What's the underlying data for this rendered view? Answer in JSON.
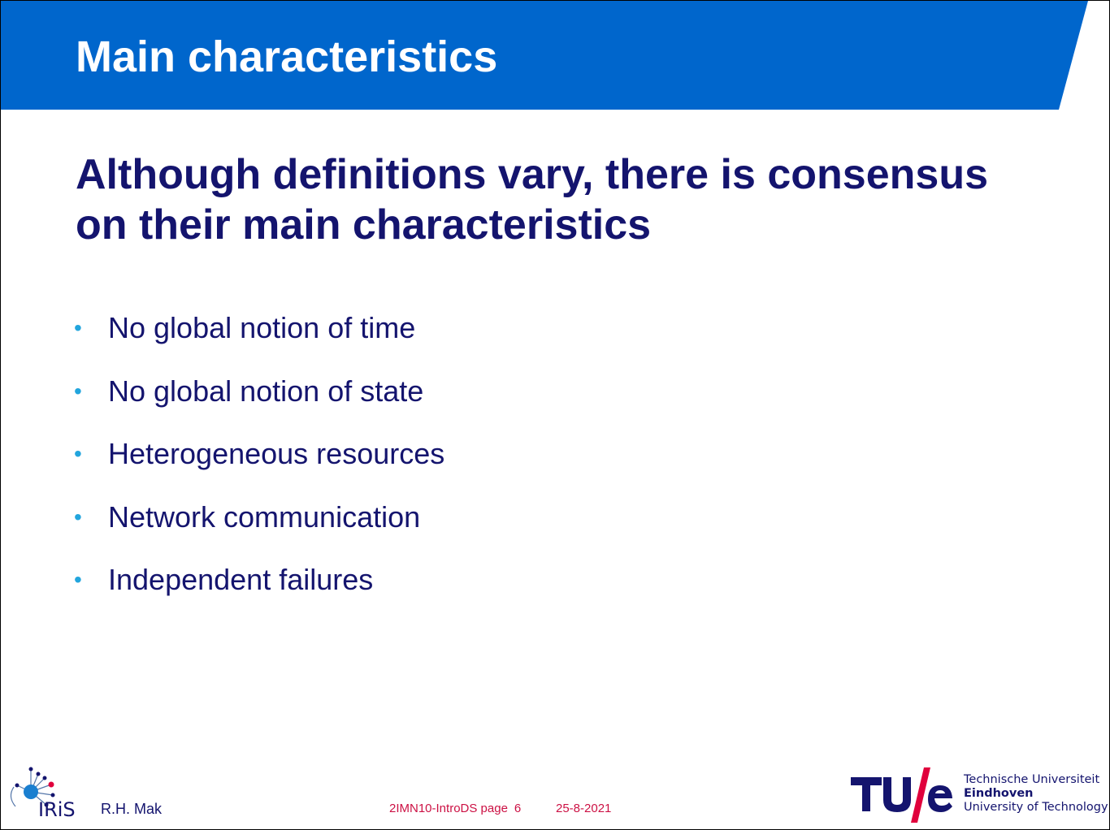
{
  "slide": {
    "title": "Main characteristics",
    "subtitle": "Although definitions vary, there is consensus on their main characteristics",
    "bullet_symbol": "•",
    "bullets": [
      "No global notion of time",
      "No global notion of state",
      "Heterogeneous resources",
      "Network communication",
      "Independent failures"
    ]
  },
  "footer": {
    "iris_logo_text": "IRiS",
    "author": "R.H. Mak",
    "course_page": "2IMN10-IntroDS page",
    "page_number": "6",
    "date": "25-8-2021",
    "tue_logo_text": "TU/e",
    "university_line1": "Technische Universiteit",
    "university_line2": "Eindhoven",
    "university_line3": "University of Technology"
  },
  "colors": {
    "header_blue": "#0066cc",
    "title_text": "#ffffff",
    "body_text": "#14146e",
    "bullet": "#22a5dd",
    "footer_red": "#cc1144",
    "tue_slash": "#e0003c"
  },
  "icons": {
    "iris_logo": "iris-network-logo",
    "tue_logo": "tue-wordmark-logo"
  }
}
